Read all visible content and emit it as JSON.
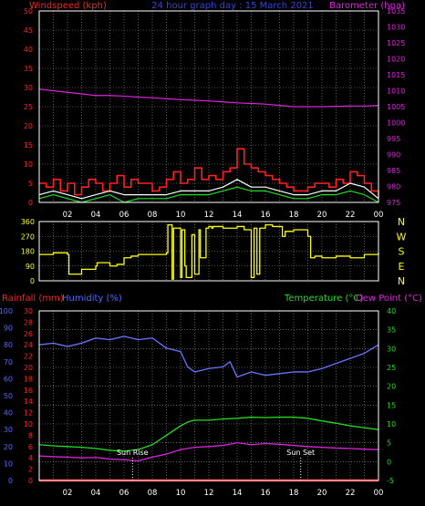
{
  "title": "24 hour graph day : 15 March 2021",
  "colors": {
    "wind": "#ff2020",
    "gust": "#ffffff",
    "wind_avg": "#22dd22",
    "barometer": "#dd22dd",
    "direction": "#ffff00",
    "rain": "#ff1010",
    "humidity": "#6677ff",
    "temperature": "#22dd22",
    "dewpoint": "#dd22dd",
    "axis_left": "#ff2020",
    "axis_blue": "#5566ff",
    "axis_green": "#22dd22",
    "grid": "#9a9a9a",
    "frame": "#ffffff",
    "sun_marker": "#ffffff"
  },
  "x_ticks": [
    "02",
    "04",
    "06",
    "08",
    "10",
    "12",
    "14",
    "16",
    "18",
    "20",
    "22",
    "00"
  ],
  "chart_data": [
    {
      "type": "line",
      "id": "wind_pressure",
      "labels": {
        "left": "Windspeed (kph)",
        "right": "Barometer (hpa)"
      },
      "left_axis": {
        "ticks": [
          0,
          5,
          10,
          15,
          20,
          25,
          30,
          35,
          40,
          45,
          50
        ],
        "ylim": [
          0,
          50
        ]
      },
      "right_axis": {
        "ticks": [
          975,
          980,
          985,
          990,
          995,
          1000,
          1005,
          1010,
          1015,
          1020,
          1025,
          1030,
          1035
        ],
        "ylim": [
          975,
          1035
        ]
      },
      "x_range_hours": [
        0,
        24
      ],
      "series": [
        {
          "key": "barometer",
          "axis": "right",
          "x": [
            0,
            1,
            2,
            3,
            4,
            5,
            6,
            7,
            8,
            9,
            10,
            11,
            12,
            13,
            14,
            15,
            16,
            17,
            18,
            19,
            20,
            21,
            22,
            23,
            24
          ],
          "values": [
            1010.5,
            1010,
            1009.5,
            1009,
            1008.5,
            1008.5,
            1008.3,
            1008,
            1007.8,
            1007.5,
            1007.2,
            1007,
            1006.8,
            1006.5,
            1006.2,
            1006,
            1005.8,
            1005.4,
            1005,
            1005,
            1005,
            1005.1,
            1005.2,
            1005.2,
            1005.4
          ]
        },
        {
          "key": "wind",
          "axis": "left",
          "x": [
            0,
            0.5,
            1,
            1.5,
            2,
            2.5,
            3,
            3.5,
            4,
            4.5,
            5,
            5.5,
            6,
            6.5,
            7,
            7.5,
            8,
            8.5,
            9,
            9.5,
            10,
            10.5,
            11,
            11.5,
            12,
            12.5,
            13,
            13.5,
            14,
            14.5,
            15,
            15.5,
            16,
            16.5,
            17,
            17.5,
            18,
            18.5,
            19,
            19.5,
            20,
            20.5,
            21,
            21.5,
            22,
            22.5,
            23,
            23.5,
            24
          ],
          "values": [
            5,
            4,
            6,
            3,
            5,
            2,
            4,
            6,
            5,
            3,
            5,
            7,
            4,
            6,
            5,
            5,
            3,
            4,
            6,
            8,
            5,
            6,
            9,
            6,
            7,
            6,
            8,
            9,
            14,
            10,
            9,
            8,
            7,
            6,
            5,
            4,
            3,
            3,
            4,
            5,
            5,
            4,
            6,
            5,
            8,
            7,
            5,
            3,
            1
          ]
        },
        {
          "key": "wind_avg",
          "axis": "left",
          "x": [
            0,
            1,
            2,
            3,
            4,
            5,
            6,
            7,
            8,
            9,
            10,
            11,
            12,
            13,
            14,
            15,
            16,
            17,
            18,
            19,
            20,
            21,
            22,
            23,
            24
          ],
          "values": [
            1,
            2,
            1,
            0,
            1,
            2,
            0,
            1,
            1,
            1,
            2,
            2,
            2,
            3,
            4,
            3,
            3,
            2,
            1,
            1,
            2,
            2,
            3,
            2,
            0
          ]
        },
        {
          "key": "gust",
          "axis": "left",
          "x": [
            0,
            1,
            2,
            3,
            4,
            5,
            6,
            7,
            8,
            9,
            10,
            11,
            12,
            13,
            14,
            15,
            16,
            17,
            18,
            19,
            20,
            21,
            22,
            23,
            24
          ],
          "values": [
            2,
            3,
            2,
            1,
            2,
            3,
            2,
            2,
            2,
            2,
            3,
            3,
            3,
            4,
            6,
            4,
            4,
            3,
            2,
            2,
            3,
            3,
            5,
            4,
            1
          ]
        }
      ]
    },
    {
      "type": "line",
      "id": "wind_direction",
      "left_axis": {
        "ticks": [
          0,
          90,
          180,
          270,
          360
        ],
        "ylim": [
          0,
          360
        ]
      },
      "right_labels": [
        "N",
        "W",
        "S",
        "E",
        "N"
      ],
      "x_range_hours": [
        0,
        24
      ],
      "series": [
        {
          "key": "direction",
          "axis": "left",
          "x": [
            0,
            1,
            2,
            2.1,
            3,
            4,
            4.1,
            5,
            5.5,
            6,
            6.5,
            7,
            8,
            9,
            9.1,
            9.4,
            9.5,
            10,
            10.1,
            10.3,
            10.4,
            10.8,
            11,
            11.3,
            11.4,
            11.8,
            12,
            12.2,
            12.3,
            13,
            14,
            14.5,
            15,
            15.2,
            15.4,
            15.6,
            16,
            16.5,
            17,
            17.2,
            17.4,
            18,
            19,
            19.2,
            19.5,
            20,
            21,
            22,
            23,
            24
          ],
          "values": [
            160,
            170,
            160,
            40,
            70,
            90,
            110,
            90,
            100,
            140,
            150,
            160,
            160,
            170,
            340,
            10,
            320,
            20,
            310,
            90,
            20,
            280,
            40,
            310,
            140,
            320,
            330,
            320,
            330,
            320,
            330,
            310,
            20,
            320,
            40,
            320,
            340,
            330,
            330,
            270,
            300,
            310,
            270,
            140,
            150,
            140,
            150,
            140,
            160,
            170
          ]
        }
      ]
    },
    {
      "type": "line",
      "id": "temperature_humidity",
      "labels": {
        "rain": "Rainfall (mm)",
        "humidity": "Humidity (%)",
        "temperature": "Temperature (°C)",
        "dewpoint": "Dew Point (°C)"
      },
      "humidity_axis": {
        "ticks": [
          0,
          10,
          20,
          30,
          40,
          50,
          60,
          70,
          80,
          90,
          100
        ],
        "ylim": [
          0,
          100
        ]
      },
      "rain_axis": {
        "ticks": [
          0,
          2,
          4,
          6,
          8,
          10,
          12,
          14,
          16,
          18,
          20,
          22,
          24,
          26,
          28,
          30
        ],
        "ylim": [
          0,
          30
        ]
      },
      "temp_axis": {
        "ticks": [
          -5,
          0,
          5,
          10,
          15,
          20,
          25,
          30,
          35,
          40
        ],
        "ylim": [
          -5,
          40
        ]
      },
      "x_range_hours": [
        0,
        24
      ],
      "annotations": [
        {
          "text": "Sun Rise",
          "x": 6.6
        },
        {
          "text": "Sun Set",
          "x": 18.5
        }
      ],
      "series": [
        {
          "key": "humidity",
          "axis": "humidity",
          "x": [
            0,
            1,
            2,
            3,
            4,
            5,
            6,
            7,
            8,
            9,
            10,
            10.5,
            11,
            12,
            13,
            13.5,
            14,
            15,
            16,
            17,
            18,
            19,
            20,
            21,
            22,
            23,
            24
          ],
          "values": [
            80,
            81,
            79,
            81,
            84,
            83,
            85,
            83,
            84,
            78,
            76,
            67,
            64,
            66,
            67,
            70,
            61,
            64,
            62,
            63,
            64,
            64,
            66,
            69,
            72,
            75,
            80
          ]
        },
        {
          "key": "temperature",
          "axis": "temp",
          "x": [
            0,
            1,
            2,
            3,
            4,
            5,
            6,
            7,
            8,
            9,
            10,
            10.5,
            11,
            12,
            13,
            14,
            15,
            16,
            17,
            18,
            19,
            20,
            21,
            22,
            23,
            24
          ],
          "values": [
            4.5,
            4.2,
            4.0,
            3.8,
            3.5,
            3.0,
            2.8,
            3.2,
            4.5,
            7.0,
            9.5,
            10.5,
            11,
            11,
            11.3,
            11.5,
            11.8,
            11.7,
            11.8,
            11.8,
            11.5,
            10.8,
            10.2,
            9.5,
            9.0,
            8.5
          ]
        },
        {
          "key": "dewpoint",
          "axis": "temp",
          "x": [
            0,
            1,
            2,
            3,
            4,
            5,
            6,
            7,
            8,
            9,
            10,
            11,
            12,
            13,
            14,
            15,
            16,
            17,
            18,
            19,
            20,
            21,
            22,
            23,
            24
          ],
          "values": [
            1.5,
            1.3,
            1.2,
            1.0,
            1.1,
            0.7,
            0.5,
            0.2,
            1.2,
            2.0,
            3.2,
            3.8,
            4.0,
            4.3,
            5.0,
            4.5,
            4.8,
            4.6,
            4.3,
            4.0,
            3.8,
            3.6,
            3.5,
            3.3,
            3.2
          ]
        },
        {
          "key": "rain",
          "axis": "rain",
          "x": [
            0,
            24
          ],
          "values": [
            0,
            0
          ]
        }
      ]
    }
  ]
}
